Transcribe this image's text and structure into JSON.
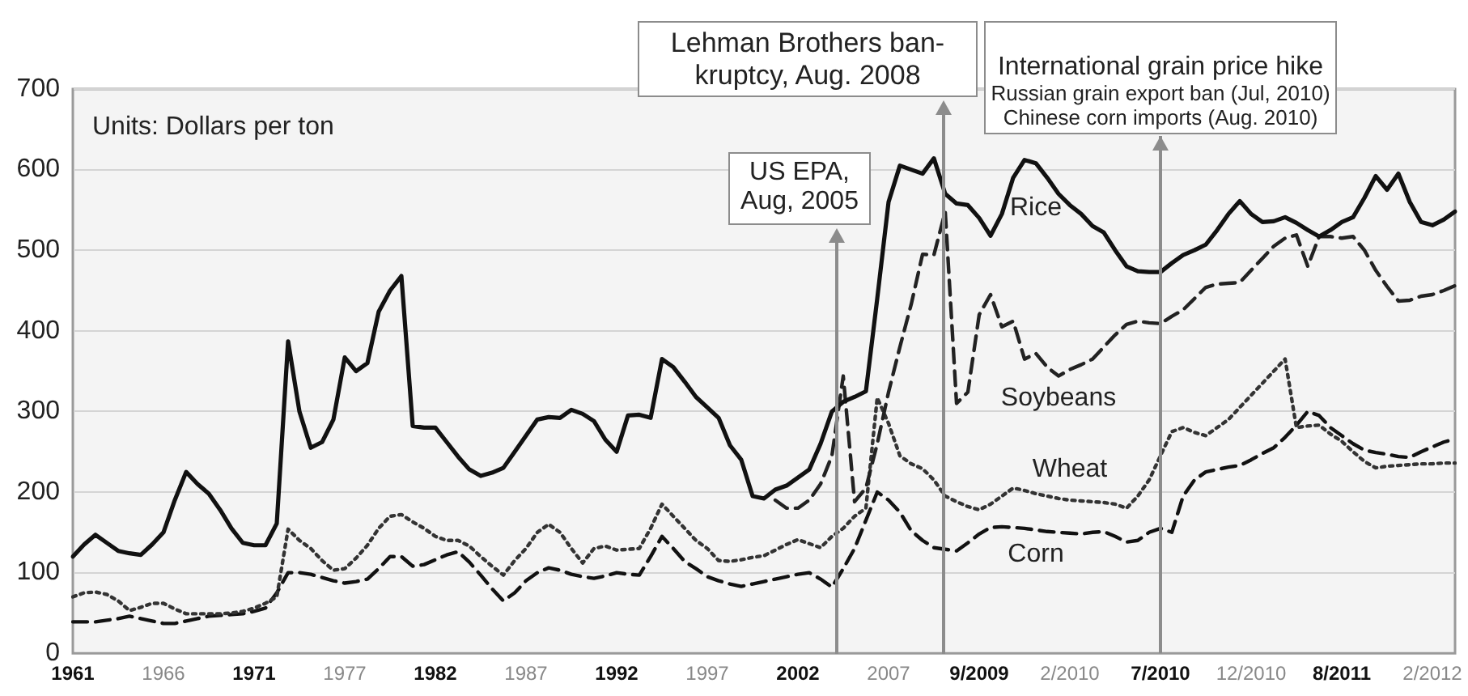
{
  "chart_data": {
    "type": "line",
    "categories": [
      "1961",
      null,
      null,
      null,
      null,
      null,
      null,
      null,
      "1966",
      null,
      null,
      null,
      null,
      null,
      null,
      null,
      "1971",
      null,
      null,
      null,
      null,
      null,
      null,
      null,
      "1977",
      null,
      null,
      null,
      null,
      null,
      null,
      null,
      "1982",
      null,
      null,
      null,
      null,
      null,
      null,
      null,
      "1987",
      null,
      null,
      null,
      null,
      null,
      null,
      null,
      "1992",
      null,
      null,
      null,
      null,
      null,
      null,
      null,
      "1997",
      null,
      null,
      null,
      null,
      null,
      null,
      null,
      "2002",
      null,
      null,
      null,
      null,
      null,
      null,
      null,
      "2007",
      null,
      null,
      null,
      null,
      null,
      null,
      null,
      "9/2009",
      null,
      null,
      null,
      null,
      null,
      null,
      null,
      "2/2010",
      null,
      null,
      null,
      null,
      null,
      null,
      null,
      "7/2010",
      null,
      null,
      null,
      null,
      null,
      null,
      null,
      "12/2010",
      null,
      null,
      null,
      null,
      null,
      null,
      null,
      "8/2011",
      null,
      null,
      null,
      null,
      null,
      null,
      null,
      "2/2012",
      null,
      null
    ],
    "ylim": [
      0,
      700
    ],
    "yticks": [
      0,
      100,
      200,
      300,
      400,
      500,
      600,
      700
    ],
    "grid": "y",
    "legend": false,
    "marker": "none",
    "annotations": [
      "Units: Dollars per ton",
      "US EPA,\nAug, 2005",
      "Lehman Brothers ban-\nkruptcy, Aug. 2008"
    ],
    "ref_lines": [
      {
        "axis": "x",
        "value": "7/2010",
        "label": "International grain price hike\nRussian grain export ban (Jul, 2010)\nChinese corn imports (Aug. 2010)",
        "color": "#8c8c8c"
      }
    ],
    "series": [
      {
        "name": "Rice",
        "color": "#111111",
        "line_style": "solid",
        "values": [
          120,
          135,
          147,
          137,
          127,
          124,
          122,
          135,
          150,
          190,
          225,
          210,
          198,
          178,
          155,
          137,
          134,
          134,
          161,
          387,
          300,
          255,
          262,
          290,
          367,
          350,
          360,
          424,
          450,
          468,
          282,
          280,
          280,
          262,
          244,
          228,
          220,
          224,
          230,
          250,
          270,
          290,
          293,
          292,
          302,
          297,
          288,
          265,
          250,
          295,
          296,
          292,
          365,
          355,
          337,
          318,
          305,
          292,
          258,
          240,
          195,
          192,
          203,
          208,
          218,
          228,
          260,
          300,
          312,
          318,
          325,
          440,
          560,
          605,
          600,
          595,
          614,
          570,
          558,
          556,
          540,
          518,
          545,
          590,
          612,
          608,
          590,
          570,
          556,
          545,
          530,
          522,
          500,
          480,
          474,
          473,
          473,
          484,
          494,
          500,
          507,
          525,
          545,
          561,
          545,
          535,
          536,
          541,
          534,
          525,
          517,
          525,
          535,
          541,
          565,
          592,
          575,
          595,
          560,
          535,
          531,
          538,
          548
        ]
      },
      {
        "name": "Soybeans",
        "color": "#222222",
        "line_style": "dashed",
        "values": [
          null,
          null,
          null,
          null,
          null,
          null,
          null,
          null,
          null,
          null,
          null,
          null,
          null,
          null,
          null,
          null,
          null,
          null,
          null,
          null,
          null,
          null,
          null,
          null,
          null,
          null,
          null,
          null,
          null,
          null,
          null,
          null,
          null,
          null,
          null,
          null,
          null,
          null,
          null,
          null,
          null,
          null,
          null,
          null,
          null,
          null,
          null,
          null,
          null,
          null,
          null,
          null,
          null,
          null,
          null,
          null,
          null,
          null,
          null,
          null,
          null,
          null,
          190,
          180,
          180,
          190,
          210,
          245,
          344,
          188,
          205,
          260,
          324,
          380,
          433,
          495,
          494,
          548,
          310,
          324,
          420,
          445,
          405,
          412,
          365,
          372,
          355,
          344,
          352,
          358,
          365,
          380,
          395,
          408,
          412,
          410,
          409,
          418,
          426,
          440,
          454,
          458,
          459,
          460,
          475,
          490,
          505,
          515,
          519,
          480,
          517,
          517,
          515,
          517,
          500,
          475,
          455,
          437,
          438,
          443,
          445,
          450,
          456
        ]
      },
      {
        "name": "Wheat",
        "color": "#333333",
        "line_style": "dotted",
        "values": [
          70,
          75,
          76,
          73,
          65,
          53,
          57,
          62,
          62,
          55,
          49,
          49,
          49,
          49,
          50,
          52,
          56,
          62,
          70,
          154,
          140,
          130,
          115,
          103,
          105,
          118,
          134,
          155,
          170,
          172,
          163,
          155,
          145,
          140,
          140,
          133,
          120,
          108,
          97,
          115,
          130,
          150,
          160,
          150,
          130,
          112,
          130,
          133,
          128,
          129,
          130,
          155,
          185,
          170,
          155,
          140,
          130,
          115,
          114,
          116,
          119,
          121,
          128,
          135,
          141,
          136,
          131,
          145,
          155,
          170,
          180,
          317,
          285,
          245,
          235,
          229,
          215,
          195,
          188,
          182,
          178,
          185,
          195,
          205,
          202,
          198,
          195,
          192,
          190,
          189,
          188,
          187,
          185,
          180,
          195,
          215,
          245,
          275,
          280,
          274,
          270,
          280,
          290,
          305,
          320,
          335,
          350,
          365,
          280,
          282,
          283,
          272,
          263,
          250,
          238,
          230,
          232,
          233,
          234,
          235,
          235,
          236,
          236
        ]
      },
      {
        "name": "Corn",
        "color": "#111111",
        "line_style": "dashed",
        "values": [
          39,
          39,
          39,
          41,
          43,
          46,
          43,
          40,
          37,
          37,
          40,
          43,
          46,
          47,
          48,
          49,
          52,
          56,
          75,
          100,
          100,
          98,
          94,
          90,
          87,
          89,
          92,
          105,
          120,
          120,
          108,
          110,
          116,
          122,
          126,
          113,
          97,
          80,
          65,
          75,
          90,
          100,
          106,
          103,
          98,
          95,
          93,
          96,
          100,
          98,
          97,
          120,
          145,
          130,
          114,
          105,
          95,
          90,
          86,
          83,
          86,
          89,
          92,
          95,
          98,
          100,
          92,
          82,
          105,
          130,
          165,
          200,
          190,
          175,
          152,
          140,
          131,
          129,
          127,
          137,
          148,
          156,
          157,
          156,
          155,
          153,
          151,
          150,
          149,
          148,
          150,
          151,
          145,
          138,
          140,
          150,
          155,
          150,
          195,
          215,
          225,
          228,
          231,
          233,
          240,
          248,
          255,
          268,
          283,
          300,
          295,
          280,
          270,
          260,
          252,
          249,
          247,
          244,
          243,
          250,
          256,
          262,
          266
        ]
      }
    ]
  }
}
